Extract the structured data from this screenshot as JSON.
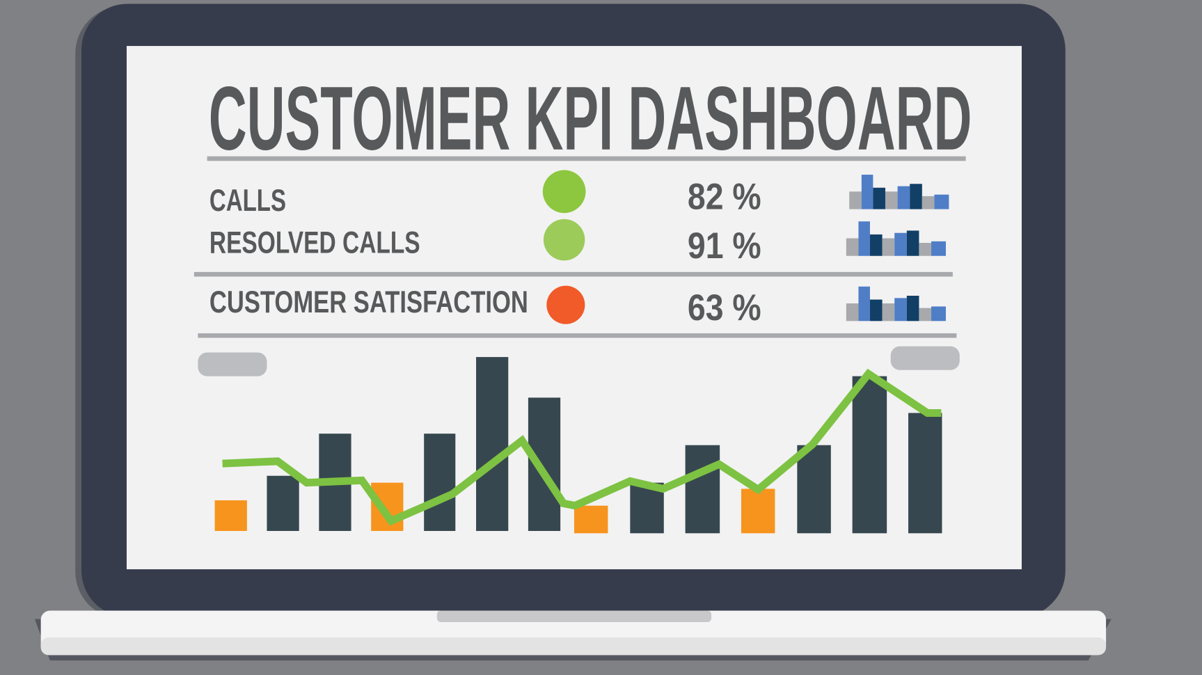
{
  "title": "CUSTOMER KPI DASHBOARD",
  "kpis": [
    {
      "label": "CALLS",
      "value": "82 %"
    },
    {
      "label": "RESOLVED CALLS",
      "value": "91 %"
    },
    {
      "label": "CUSTOMER SATISFACTION",
      "value": "63 %"
    }
  ]
}
